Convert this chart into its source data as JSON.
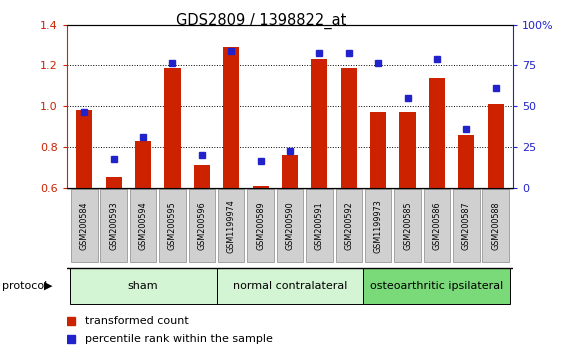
{
  "title": "GDS2809 / 1398822_at",
  "samples": [
    "GSM200584",
    "GSM200593",
    "GSM200594",
    "GSM200595",
    "GSM200596",
    "GSM1199974",
    "GSM200589",
    "GSM200590",
    "GSM200591",
    "GSM200592",
    "GSM1199973",
    "GSM200585",
    "GSM200586",
    "GSM200587",
    "GSM200588"
  ],
  "red_bars": [
    0.98,
    0.65,
    0.83,
    1.19,
    0.71,
    1.29,
    0.61,
    0.76,
    1.23,
    1.19,
    0.97,
    0.97,
    1.14,
    0.86,
    1.01
  ],
  "blue_dots": [
    0.97,
    0.74,
    0.85,
    1.21,
    0.76,
    1.27,
    0.73,
    0.78,
    1.26,
    1.26,
    1.21,
    1.04,
    1.23,
    0.89,
    1.09
  ],
  "groups": [
    {
      "label": "sham",
      "start": 0,
      "end": 5
    },
    {
      "label": "normal contralateral",
      "start": 5,
      "end": 10
    },
    {
      "label": "osteoarthritic ipsilateral",
      "start": 10,
      "end": 15
    }
  ],
  "group_colors_light": "#d4f5d4",
  "group_color_dark": "#7ada7a",
  "ylim_left": [
    0.6,
    1.4
  ],
  "ylim_right": [
    0,
    100
  ],
  "yticks_left": [
    0.6,
    0.8,
    1.0,
    1.2,
    1.4
  ],
  "yticks_right": [
    0,
    25,
    50,
    75,
    100
  ],
  "ytick_labels_right": [
    "0",
    "25",
    "50",
    "75",
    "100%"
  ],
  "bar_color": "#cc2200",
  "dot_color": "#2222cc",
  "bar_width": 0.55,
  "protocol_label": "protocol",
  "legend_red": "transformed count",
  "legend_blue": "percentile rank within the sample"
}
